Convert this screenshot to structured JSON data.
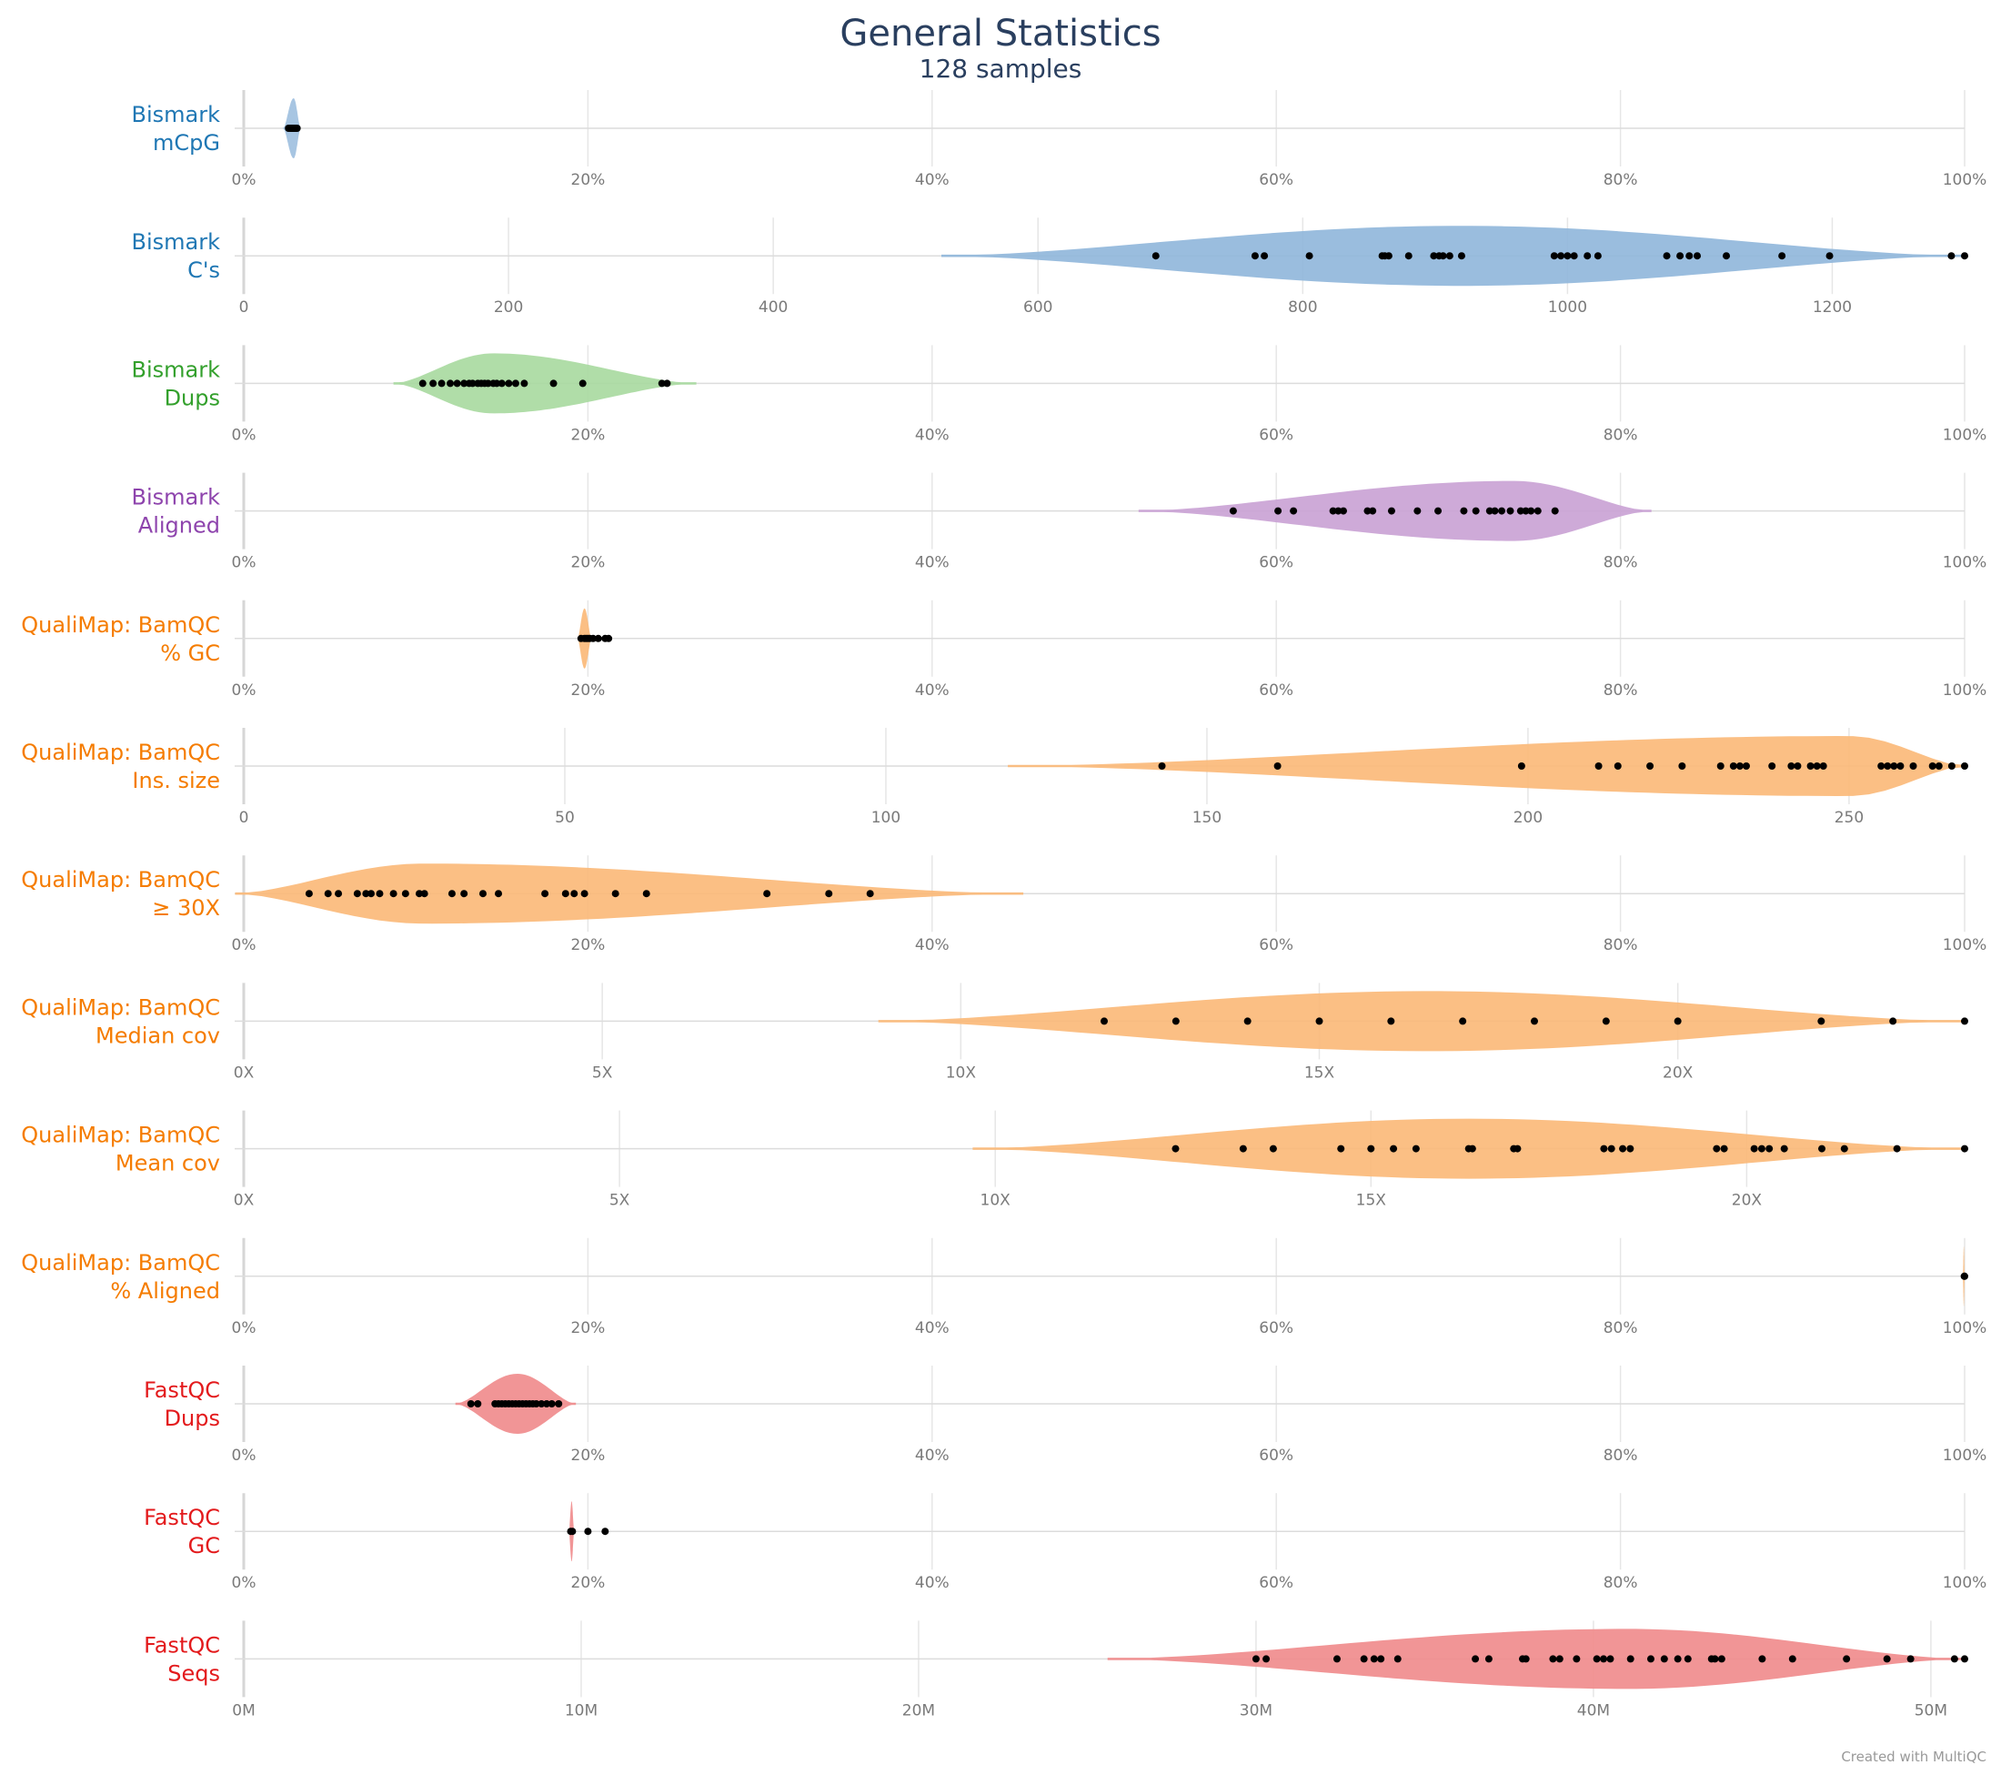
{
  "title": "General Statistics",
  "subtitle": "128 samples",
  "credit": "Created with MultiQC",
  "chart_data": {
    "type": "violin",
    "title": "General Statistics",
    "subtitle": "128 samples",
    "rows": [
      {
        "label_line1": "Bismark",
        "label_line2": "mCpG",
        "color": "#1f77b4",
        "fill": "#9dbfdf",
        "xlim": [
          0,
          100
        ],
        "ticks": [
          0,
          20,
          40,
          60,
          80,
          100
        ],
        "tick_labels": [
          "0%",
          "20%",
          "40%",
          "60%",
          "80%",
          "100%"
        ],
        "violin_range": [
          2.3,
          3.3
        ],
        "violin_peak": 2.9,
        "violin_halfwidth": 0.45,
        "points": [
          2.6,
          2.7,
          2.8,
          2.9,
          3.0,
          3.1,
          2.75,
          2.85,
          2.95,
          3.05
        ]
      },
      {
        "label_line1": "Bismark",
        "label_line2": "C's",
        "color": "#1f77b4",
        "fill": "#8fb6da",
        "xlim": [
          0,
          1300
        ],
        "ticks": [
          0,
          200,
          400,
          600,
          800,
          1000,
          1200
        ],
        "tick_labels": [
          "0",
          "200",
          "400",
          "600",
          "800",
          "1000",
          "1200"
        ],
        "violin_range": [
          527,
          1300
        ],
        "violin_peak": 920,
        "violin_halfwidth": 0.45,
        "points": [
          689,
          764,
          771,
          805,
          860,
          862,
          865,
          880,
          899,
          903,
          906,
          911,
          920,
          990,
          995,
          1000,
          1005,
          1015,
          1023,
          1075,
          1085,
          1092,
          1098,
          1120,
          1162,
          1198,
          1290,
          1300
        ]
      },
      {
        "label_line1": "Bismark",
        "label_line2": "Dups",
        "color": "#33a02c",
        "fill": "#a7d99f",
        "xlim": [
          0,
          100
        ],
        "ticks": [
          0,
          20,
          40,
          60,
          80,
          100
        ],
        "tick_labels": [
          "0%",
          "20%",
          "40%",
          "60%",
          "80%",
          "100%"
        ],
        "violin_range": [
          8.7,
          26.3
        ],
        "violin_peak": 14.5,
        "violin_halfwidth": 0.45,
        "points": [
          10.4,
          11.0,
          11.5,
          12.0,
          12.4,
          12.8,
          13.1,
          13.3,
          13.6,
          13.8,
          14.0,
          14.2,
          14.5,
          14.7,
          15.0,
          15.4,
          15.8,
          16.3,
          18.0,
          19.7,
          24.3,
          24.6
        ]
      },
      {
        "label_line1": "Bismark",
        "label_line2": "Aligned",
        "color": "#8e44ad",
        "fill": "#c9a1d4",
        "xlim": [
          0,
          100
        ],
        "ticks": [
          0,
          20,
          40,
          60,
          80,
          100
        ],
        "tick_labels": [
          "0%",
          "20%",
          "40%",
          "60%",
          "80%",
          "100%"
        ],
        "violin_range": [
          52,
          81.8
        ],
        "violin_peak": 73.8,
        "violin_halfwidth": 0.45,
        "points": [
          57.5,
          60.1,
          61.0,
          63.3,
          63.6,
          63.9,
          65.3,
          65.6,
          66.7,
          68.2,
          69.4,
          70.9,
          71.6,
          72.4,
          72.7,
          73.1,
          73.6,
          74.2,
          74.5,
          74.8,
          75.2,
          76.2
        ]
      },
      {
        "label_line1": "QualiMap: BamQC",
        "label_line2": "% GC",
        "color": "#f57c00",
        "fill": "#fbb877",
        "xlim": [
          0,
          100
        ],
        "ticks": [
          0,
          20,
          40,
          60,
          80,
          100
        ],
        "tick_labels": [
          "0%",
          "20%",
          "40%",
          "60%",
          "80%",
          "100%"
        ],
        "violin_range": [
          19.4,
          20.2
        ],
        "violin_peak": 19.8,
        "violin_halfwidth": 0.45,
        "points": [
          19.6,
          19.8,
          19.9,
          20.0,
          20.1,
          20.3,
          20.6,
          21.0,
          21.2
        ]
      },
      {
        "label_line1": "QualiMap: BamQC",
        "label_line2": "Ins. size",
        "color": "#f57c00",
        "fill": "#fbb877",
        "xlim": [
          0,
          268
        ],
        "ticks": [
          0,
          50,
          100,
          150,
          200,
          250
        ],
        "tick_labels": [
          "0",
          "50",
          "100",
          "150",
          "200",
          "250"
        ],
        "violin_range": [
          119,
          268
        ],
        "violin_peak": 250,
        "violin_halfwidth": 0.45,
        "points": [
          143,
          161,
          199,
          211,
          214,
          219,
          224,
          230,
          232,
          233,
          234,
          238,
          241,
          242,
          244,
          245,
          246,
          255,
          256,
          257,
          258,
          260,
          263,
          264,
          266,
          268
        ]
      },
      {
        "label_line1": "QualiMap: BamQC",
        "label_line2": "≥ 30X",
        "color": "#f57c00",
        "fill": "#fbb877",
        "xlim": [
          0,
          100
        ],
        "ticks": [
          0,
          20,
          40,
          60,
          80,
          100
        ],
        "tick_labels": [
          "0%",
          "20%",
          "40%",
          "60%",
          "80%",
          "100%"
        ],
        "violin_range": [
          -0.5,
          45.3
        ],
        "violin_peak": 10.5,
        "violin_halfwidth": 0.45,
        "points": [
          3.8,
          4.9,
          5.5,
          6.6,
          7.1,
          7.4,
          7.9,
          8.7,
          9.4,
          10.2,
          10.5,
          12.1,
          12.8,
          13.9,
          14.8,
          17.5,
          18.7,
          19.2,
          19.8,
          21.6,
          23.4,
          30.4,
          34.0,
          36.4
        ]
      },
      {
        "label_line1": "QualiMap: BamQC",
        "label_line2": "Median cov",
        "color": "#f57c00",
        "fill": "#fbb877",
        "xlim": [
          0,
          24
        ],
        "ticks": [
          0,
          5,
          10,
          15,
          20
        ],
        "tick_labels": [
          "0X",
          "5X",
          "10X",
          "15X",
          "20X"
        ],
        "violin_range": [
          8.85,
          24
        ],
        "violin_peak": 16.5,
        "violin_halfwidth": 0.45,
        "points": [
          12,
          13,
          14,
          15,
          16,
          17,
          18,
          19,
          20,
          22,
          23,
          24
        ]
      },
      {
        "label_line1": "QualiMap: BamQC",
        "label_line2": "Mean cov",
        "color": "#f57c00",
        "fill": "#fbb877",
        "xlim": [
          0,
          22.9
        ],
        "ticks": [
          0,
          5,
          10,
          15,
          20
        ],
        "tick_labels": [
          "0X",
          "5X",
          "10X",
          "15X",
          "20X"
        ],
        "violin_range": [
          9.7,
          22.9
        ],
        "violin_peak": 16.3,
        "violin_halfwidth": 0.45,
        "points": [
          12.4,
          13.3,
          13.7,
          14.6,
          15.0,
          15.3,
          15.6,
          16.3,
          16.35,
          16.9,
          16.95,
          18.1,
          18.2,
          18.35,
          18.45,
          19.6,
          19.7,
          20.1,
          20.2,
          20.3,
          20.5,
          21.0,
          21.3,
          22.0,
          22.9
        ]
      },
      {
        "label_line1": "QualiMap: BamQC",
        "label_line2": "% Aligned",
        "color": "#f57c00",
        "fill": "#fbb877",
        "xlim": [
          0,
          100
        ],
        "ticks": [
          0,
          20,
          40,
          60,
          80,
          100
        ],
        "tick_labels": [
          "0%",
          "20%",
          "40%",
          "60%",
          "80%",
          "100%"
        ],
        "violin_range": [
          99.9,
          100.0
        ],
        "violin_peak": 99.95,
        "violin_halfwidth": 0.45,
        "points": [
          99.98,
          100.0
        ]
      },
      {
        "label_line1": "FastQC",
        "label_line2": "Dups",
        "color": "#e31a1c",
        "fill": "#f08a8b",
        "xlim": [
          0,
          100
        ],
        "ticks": [
          0,
          20,
          40,
          60,
          80,
          100
        ],
        "tick_labels": [
          "0%",
          "20%",
          "40%",
          "60%",
          "80%",
          "100%"
        ],
        "violin_range": [
          12.3,
          19.3
        ],
        "violin_peak": 15.9,
        "violin_halfwidth": 0.45,
        "points": [
          13.2,
          13.6,
          14.6,
          14.8,
          15.0,
          15.2,
          15.4,
          15.6,
          15.8,
          16.0,
          16.2,
          16.4,
          16.6,
          16.8,
          17.0,
          17.3,
          17.6,
          17.9,
          18.3
        ]
      },
      {
        "label_line1": "FastQC",
        "label_line2": "GC",
        "color": "#e31a1c",
        "fill": "#f08a8b",
        "xlim": [
          0,
          100
        ],
        "ticks": [
          0,
          20,
          40,
          60,
          80,
          100
        ],
        "tick_labels": [
          "0%",
          "20%",
          "40%",
          "60%",
          "80%",
          "100%"
        ],
        "violin_range": [
          18.9,
          19.2
        ],
        "violin_peak": 19.05,
        "violin_halfwidth": 0.45,
        "points": [
          19.0,
          19.1,
          20.0,
          21.0
        ]
      },
      {
        "label_line1": "FastQC",
        "label_line2": "Seqs",
        "color": "#e31a1c",
        "fill": "#f08a8b",
        "xlim": [
          0,
          51
        ],
        "ticks": [
          0,
          10,
          20,
          30,
          40,
          50
        ],
        "tick_labels": [
          "0M",
          "10M",
          "20M",
          "30M",
          "40M",
          "50M"
        ],
        "violin_range": [
          25.6,
          51
        ],
        "violin_peak": 41,
        "violin_halfwidth": 0.45,
        "points": [
          30.0,
          30.3,
          32.4,
          33.2,
          33.5,
          33.7,
          34.2,
          36.5,
          36.9,
          37.9,
          38.0,
          38.8,
          39.0,
          39.5,
          40.1,
          40.3,
          40.5,
          41.1,
          41.7,
          42.1,
          42.5,
          42.8,
          43.5,
          43.6,
          43.8,
          45.0,
          45.9,
          47.5,
          48.7,
          49.4,
          50.7,
          51.0
        ]
      }
    ]
  }
}
